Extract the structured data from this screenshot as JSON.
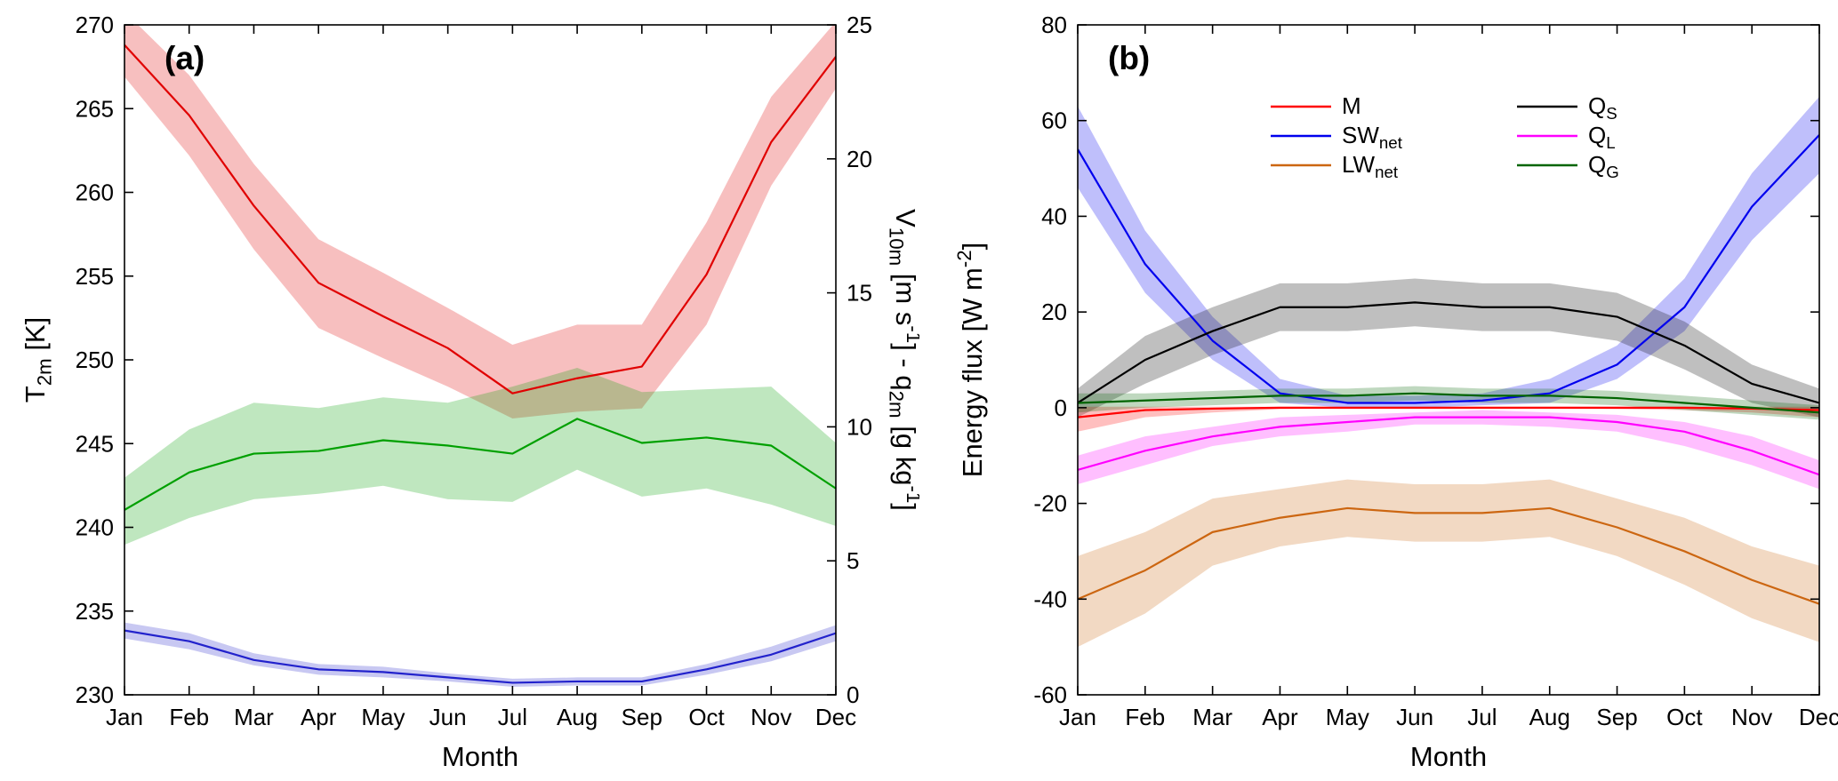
{
  "figure": {
    "background": "#ffffff"
  },
  "chart_data": [
    {
      "id": "a",
      "type": "line",
      "panel_label": "(a)",
      "xlabel": "Month",
      "categories": [
        "Jan",
        "Feb",
        "Mar",
        "Apr",
        "May",
        "Jun",
        "Jul",
        "Aug",
        "Sep",
        "Oct",
        "Nov",
        "Dec"
      ],
      "left_axis": {
        "label_segments": [
          {
            "t": "T"
          },
          {
            "t": "2m",
            "type": "sub"
          },
          {
            "t": " [K]"
          }
        ],
        "min": 230,
        "max": 270,
        "ticks": [
          230,
          235,
          240,
          245,
          250,
          255,
          260,
          265,
          270
        ]
      },
      "right_axis": {
        "label_segments": [
          {
            "t": "V"
          },
          {
            "t": "10m",
            "type": "sub"
          },
          {
            "t": " [m s"
          },
          {
            "t": "-1",
            "type": "sup"
          },
          {
            "t": "] - q"
          },
          {
            "t": "2m",
            "type": "sub"
          },
          {
            "t": " [g kg"
          },
          {
            "t": "-1",
            "type": "sup"
          },
          {
            "t": "]"
          }
        ],
        "min": 0,
        "max": 25,
        "ticks": [
          0,
          5,
          10,
          15,
          20,
          25
        ]
      },
      "grid": false,
      "legend": false,
      "series": [
        {
          "key": "T2m",
          "axis": "left",
          "color": "#e00000",
          "label_segments": [
            {
              "t": "T"
            },
            {
              "t": "2m",
              "type": "sub"
            }
          ],
          "values": [
            268.8,
            264.6,
            259.2,
            254.6,
            252.6,
            250.7,
            248.0,
            248.9,
            249.6,
            255.1,
            263.0,
            268.1
          ],
          "lower": [
            266.9,
            262.2,
            256.6,
            251.9,
            250.1,
            248.4,
            246.5,
            246.9,
            247.1,
            252.1,
            260.4,
            266.2
          ],
          "upper": [
            270.8,
            267.0,
            261.7,
            257.2,
            255.2,
            253.1,
            250.9,
            252.1,
            252.1,
            258.2,
            265.7,
            270.2
          ]
        },
        {
          "key": "V10m",
          "axis": "right",
          "color": "#00a000",
          "label_segments": [
            {
              "t": "V"
            },
            {
              "t": "10m",
              "type": "sub"
            }
          ],
          "values": [
            6.9,
            8.3,
            9.0,
            9.1,
            9.5,
            9.3,
            9.0,
            10.3,
            9.4,
            9.6,
            9.3,
            7.7
          ],
          "lower": [
            5.6,
            6.6,
            7.3,
            7.5,
            7.8,
            7.3,
            7.2,
            8.4,
            7.4,
            7.7,
            7.1,
            6.3
          ],
          "upper": [
            8.1,
            9.9,
            10.9,
            10.7,
            11.1,
            10.9,
            11.5,
            12.2,
            11.3,
            11.4,
            11.5,
            9.4
          ]
        },
        {
          "key": "q2m",
          "axis": "right",
          "color": "#2222cc",
          "label_segments": [
            {
              "t": "q"
            },
            {
              "t": "2m",
              "type": "sub"
            }
          ],
          "values": [
            2.4,
            2.0,
            1.3,
            0.95,
            0.85,
            0.65,
            0.45,
            0.5,
            0.5,
            0.95,
            1.5,
            2.3
          ],
          "lower": [
            2.1,
            1.7,
            1.1,
            0.75,
            0.65,
            0.5,
            0.3,
            0.35,
            0.35,
            0.75,
            1.25,
            2.0
          ],
          "upper": [
            2.7,
            2.3,
            1.55,
            1.15,
            1.05,
            0.8,
            0.6,
            0.65,
            0.65,
            1.15,
            1.8,
            2.6
          ]
        }
      ]
    },
    {
      "id": "b",
      "type": "line",
      "panel_label": "(b)",
      "xlabel": "Month",
      "categories": [
        "Jan",
        "Feb",
        "Mar",
        "Apr",
        "May",
        "Jun",
        "Jul",
        "Aug",
        "Sep",
        "Oct",
        "Nov",
        "Dec"
      ],
      "left_axis": {
        "label_segments": [
          {
            "t": "Energy flux [W m"
          },
          {
            "t": "-2",
            "type": "sup"
          },
          {
            "t": "]"
          }
        ],
        "min": -60,
        "max": 80,
        "ticks": [
          -60,
          -40,
          -20,
          0,
          20,
          40,
          60,
          80
        ]
      },
      "grid": false,
      "legend": true,
      "legend_columns": [
        [
          "M",
          "SWnet",
          "LWnet"
        ],
        [
          "QS",
          "QL",
          "QG"
        ]
      ],
      "series": [
        {
          "key": "SWnet",
          "axis": "left",
          "color": "#0000ee",
          "label_segments": [
            {
              "t": "SW"
            },
            {
              "t": "net",
              "type": "sub"
            }
          ],
          "values": [
            54,
            30,
            14,
            3,
            1,
            1,
            1.5,
            3,
            9,
            21,
            42,
            57
          ],
          "lower": [
            46,
            24,
            10,
            1,
            0,
            0,
            0.5,
            1,
            6,
            16,
            35,
            49
          ],
          "upper": [
            63,
            37,
            19,
            6,
            2.5,
            2.5,
            3,
            6,
            13,
            27,
            49,
            65
          ]
        },
        {
          "key": "QS",
          "axis": "left",
          "color": "#000000",
          "label_segments": [
            {
              "t": "Q"
            },
            {
              "t": "S",
              "type": "sub"
            }
          ],
          "values": [
            1,
            10,
            16,
            21,
            21,
            22,
            21,
            21,
            19,
            13,
            5,
            1
          ],
          "lower": [
            -2,
            5,
            11,
            16,
            16,
            17,
            16,
            16,
            14,
            8,
            1,
            -2
          ],
          "upper": [
            4,
            15,
            21,
            26,
            26,
            27,
            26,
            26,
            24,
            18,
            9,
            4
          ]
        },
        {
          "key": "LWnet",
          "axis": "left",
          "color": "#cc6611",
          "label_segments": [
            {
              "t": "LW"
            },
            {
              "t": "net",
              "type": "sub"
            }
          ],
          "values": [
            -40,
            -34,
            -26,
            -23,
            -21,
            -22,
            -22,
            -21,
            -25,
            -30,
            -36,
            -41
          ],
          "lower": [
            -50,
            -43,
            -33,
            -29,
            -27,
            -28,
            -28,
            -27,
            -31,
            -37,
            -44,
            -49
          ],
          "upper": [
            -31,
            -26,
            -19,
            -17,
            -15,
            -16,
            -16,
            -15,
            -19,
            -23,
            -29,
            -33
          ]
        },
        {
          "key": "QL",
          "axis": "left",
          "color": "#ff00ff",
          "label_segments": [
            {
              "t": "Q"
            },
            {
              "t": "L",
              "type": "sub"
            }
          ],
          "values": [
            -13,
            -9,
            -6,
            -4,
            -3,
            -2,
            -2,
            -2,
            -3,
            -5,
            -9,
            -14
          ],
          "lower": [
            -16,
            -12,
            -8,
            -6,
            -5,
            -3.5,
            -3.5,
            -4,
            -5,
            -8,
            -12,
            -17
          ],
          "upper": [
            -10,
            -6,
            -4,
            -2,
            -1.5,
            -1,
            -0.5,
            -1,
            -1.5,
            -3,
            -6,
            -11
          ]
        },
        {
          "key": "M",
          "axis": "left",
          "color": "#ff0000",
          "label_segments": [
            {
              "t": "M"
            }
          ],
          "values": [
            -2,
            -0.5,
            -0.2,
            0,
            0,
            0,
            0,
            0,
            0,
            0,
            -0.2,
            -0.5
          ],
          "lower": [
            -5,
            -2,
            -1,
            -0.3,
            -0.2,
            -0.2,
            -0.2,
            -0.2,
            -0.3,
            -0.5,
            -1,
            -2
          ],
          "upper": [
            0.2,
            0.2,
            0.2,
            0.2,
            0.2,
            0.2,
            0.2,
            0.2,
            0.2,
            0.2,
            0.2,
            0.2
          ]
        },
        {
          "key": "QG",
          "axis": "left",
          "color": "#006400",
          "label_segments": [
            {
              "t": "Q"
            },
            {
              "t": "G",
              "type": "sub"
            }
          ],
          "values": [
            1,
            1.5,
            2,
            2.5,
            2.5,
            3,
            2.5,
            2.5,
            2,
            1,
            0,
            -1
          ],
          "lower": [
            -1,
            0,
            0.5,
            1,
            1,
            1.5,
            1,
            1,
            0.5,
            -0.5,
            -1.5,
            -2.5
          ],
          "upper": [
            3,
            3,
            3.5,
            4,
            4,
            4.5,
            4,
            4,
            3.5,
            2.5,
            1.5,
            0.5
          ]
        }
      ]
    }
  ]
}
